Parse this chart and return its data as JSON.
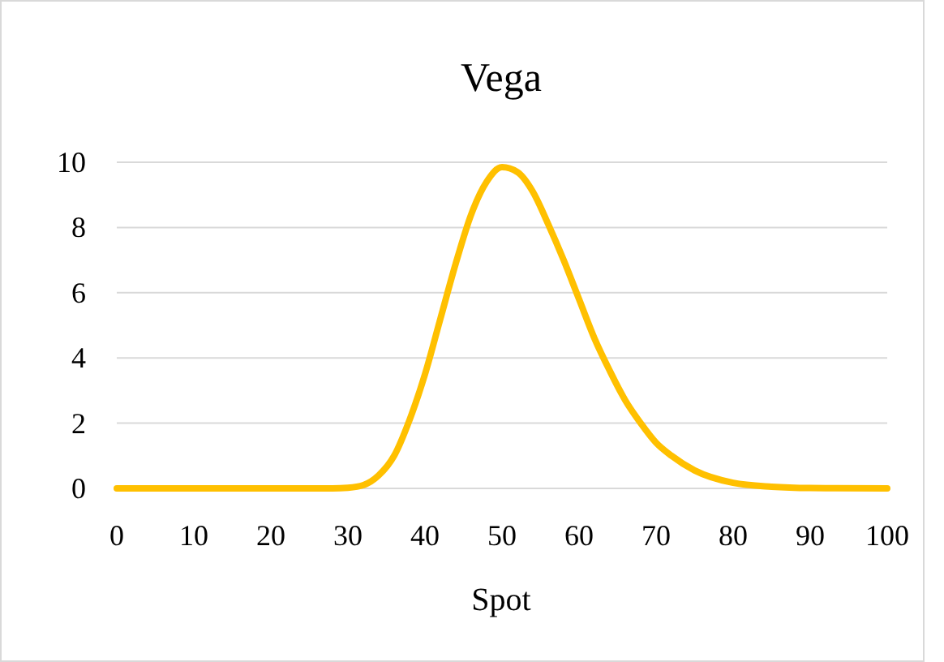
{
  "chart_data": {
    "type": "line",
    "title": "Vega",
    "xlabel": "Spot",
    "x": [
      0,
      10,
      20,
      28,
      30,
      32,
      34,
      36,
      38,
      40,
      42,
      44,
      46,
      48,
      50,
      52,
      54,
      56,
      58,
      60,
      62,
      64,
      66,
      68,
      70,
      72,
      75,
      80,
      85,
      90,
      100
    ],
    "series": [
      {
        "color": "#ffc000",
        "values": [
          0,
          0,
          0,
          0,
          0.02,
          0.1,
          0.4,
          1.0,
          2.1,
          3.5,
          5.2,
          6.9,
          8.4,
          9.4,
          9.85,
          9.7,
          9.1,
          8.1,
          7.0,
          5.8,
          4.6,
          3.6,
          2.7,
          2.0,
          1.4,
          1.0,
          0.55,
          0.17,
          0.05,
          0.01,
          0
        ]
      }
    ],
    "xlim": [
      0,
      100
    ],
    "xticks": [
      0,
      10,
      20,
      30,
      40,
      50,
      60,
      70,
      80,
      90,
      100
    ],
    "ylim": [
      0,
      10
    ],
    "yticks": [
      0,
      2,
      4,
      6,
      8,
      10
    ],
    "grid": "y",
    "marker": "none",
    "line_style": "solid"
  }
}
